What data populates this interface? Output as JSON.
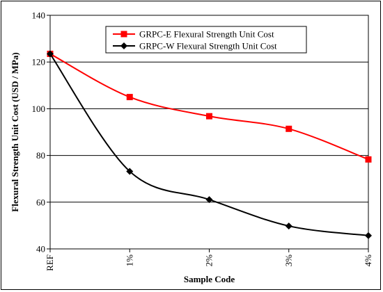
{
  "chart_data": {
    "type": "line",
    "categories": [
      "REF",
      "1%",
      "2%",
      "3%",
      "4%"
    ],
    "series": [
      {
        "name": "GRPC-E Flexural Strength Unit Cost",
        "color": "#ff0000",
        "marker": "square",
        "values": [
          123.5,
          105.0,
          96.8,
          91.4,
          78.3
        ]
      },
      {
        "name": "GRPC-W Flexural Strength Unit Cost",
        "color": "#000000",
        "marker": "diamond",
        "values": [
          123.5,
          73.2,
          61.1,
          49.8,
          45.7
        ]
      }
    ],
    "xlabel": "Sample Code",
    "ylabel": "Flexural Strength Unit Cost (USD / MPa)",
    "ylim": [
      40,
      140
    ],
    "yticks": [
      40,
      60,
      80,
      100,
      120,
      140
    ],
    "grid": true,
    "legend_position": "top-right"
  }
}
